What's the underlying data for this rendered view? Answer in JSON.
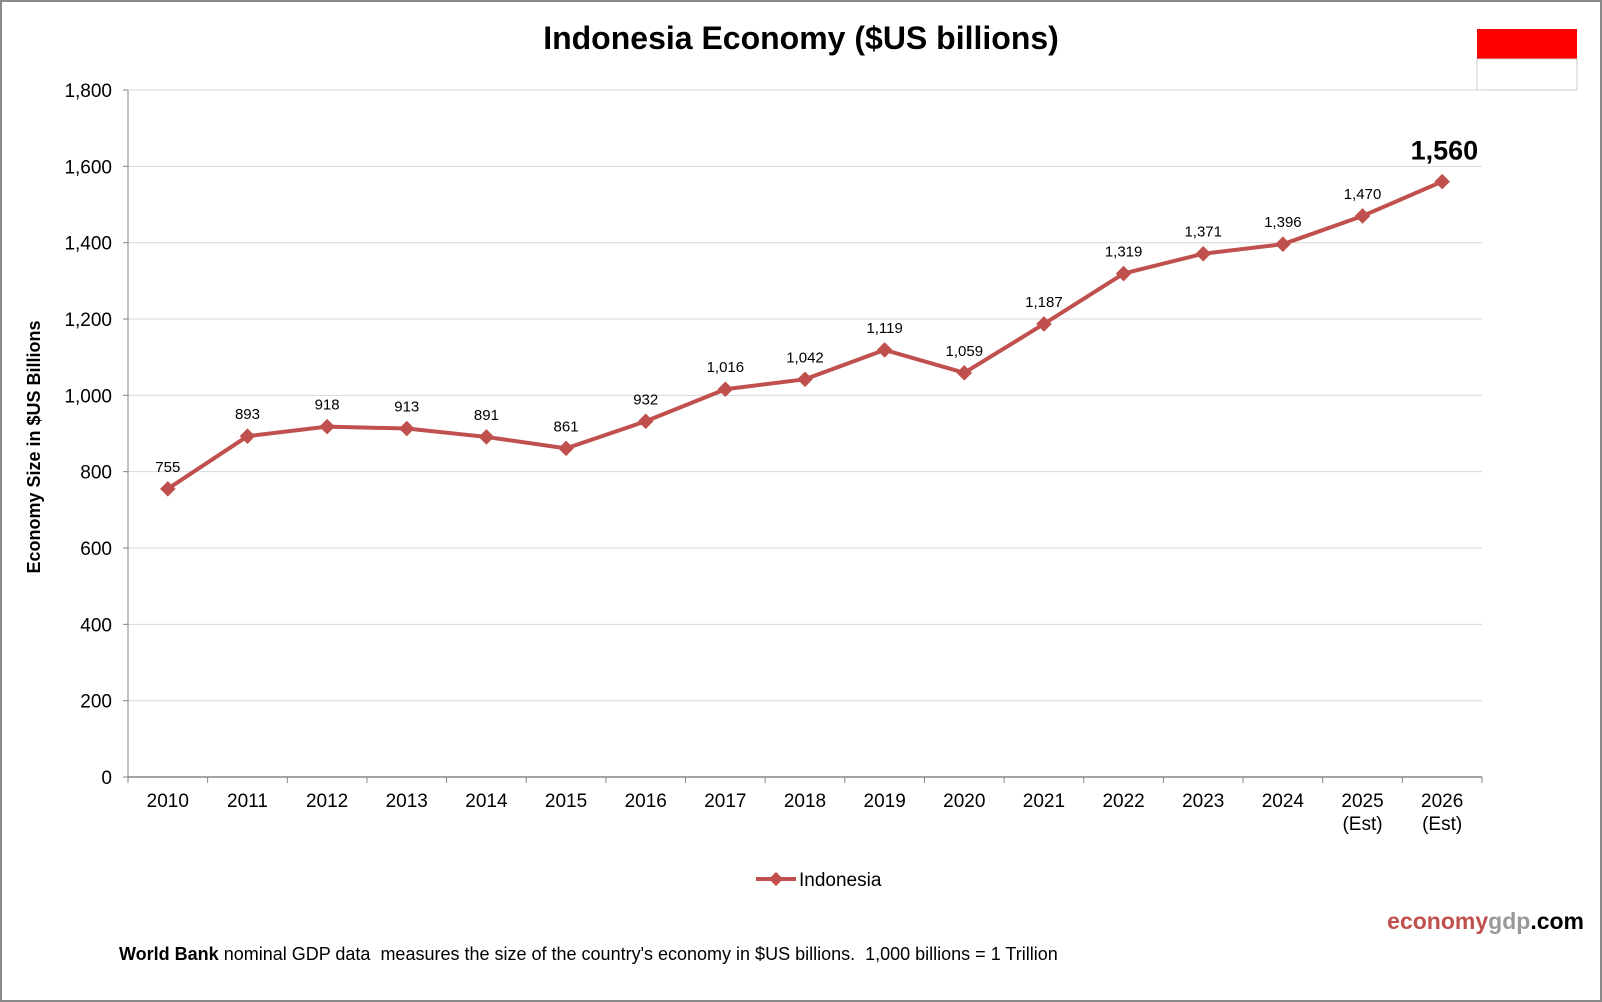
{
  "chart_data": {
    "type": "line",
    "title": "Indonesia Economy ($US billions)",
    "xlabel": "",
    "ylabel": "Economy Size in $US Billions",
    "categories": [
      "2010",
      "2011",
      "2012",
      "2013",
      "2014",
      "2015",
      "2016",
      "2017",
      "2018",
      "2019",
      "2020",
      "2021",
      "2022",
      "2023",
      "2024",
      "2025 (Est)",
      "2026 (Est)"
    ],
    "series": [
      {
        "name": "Indonesia",
        "color": "#c0504d",
        "values": [
          755,
          893,
          918,
          913,
          891,
          861,
          932,
          1016,
          1042,
          1119,
          1059,
          1187,
          1319,
          1371,
          1396,
          1470,
          1560
        ]
      }
    ],
    "data_labels": [
      "755",
      "893",
      "918",
      "913",
      "891",
      "861",
      "932",
      "1,016",
      "1,042",
      "1,119",
      "1,059",
      "1,187",
      "1,319",
      "1,371",
      "1,396",
      "1,470",
      "1,560"
    ],
    "ylim": [
      0,
      1800
    ],
    "yticks": [
      0,
      200,
      400,
      600,
      800,
      1000,
      1200,
      1400,
      1600,
      1800
    ],
    "ytick_labels": [
      "0",
      "200",
      "400",
      "600",
      "800",
      "1,000",
      "1,200",
      "1,400",
      "1,600",
      "1,800"
    ],
    "grid": true,
    "legend": "bottom-center",
    "highlight_label": "1,560"
  },
  "flag": {
    "top": "#ff0000",
    "bottom": "#ffffff"
  },
  "watermark": {
    "part1": "economy",
    "part2": "gdp",
    "part3": ".com"
  },
  "footer": {
    "bold": "World Bank",
    "text": " nominal GDP data  measures the size of the country's economy in $US billions.  1,000 billions = 1 Trillion"
  }
}
